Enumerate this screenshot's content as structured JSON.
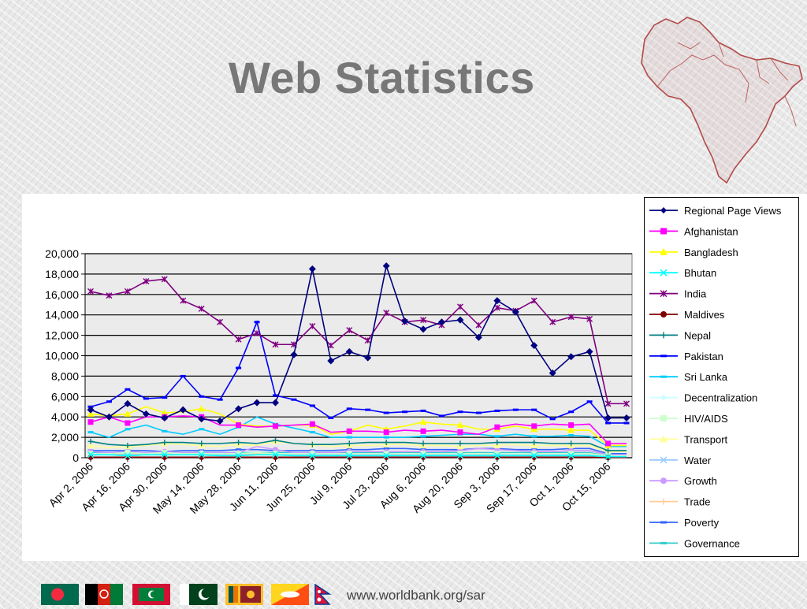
{
  "slide": {
    "title": "Web Statistics",
    "footer_url": "www.worldbank.org/sar",
    "flags": [
      "bangladesh-flag",
      "afghanistan-flag",
      "maldives-flag",
      "pakistan-flag",
      "sri-lanka-flag",
      "bhutan-flag",
      "nepal-flag"
    ]
  },
  "chart_data": {
    "type": "line",
    "title": "",
    "xlabel": "",
    "ylabel": "",
    "ylim": [
      0,
      20000
    ],
    "yticks": [
      0,
      2000,
      4000,
      6000,
      8000,
      10000,
      12000,
      14000,
      16000,
      18000,
      20000
    ],
    "ytick_labels": [
      "0",
      "2,000",
      "4,000",
      "6,000",
      "8,000",
      "10,000",
      "12,000",
      "14,000",
      "16,000",
      "18,000",
      "20,000"
    ],
    "xtick_labels": [
      "Apr  2, 2006",
      "Apr 16, 2006",
      "Apr 30, 2006",
      "May 14, 2006",
      "May 28, 2006",
      "Jun 11, 2006",
      "Jun 25, 2006",
      "Jul  9, 2006",
      "Jul 23, 2006",
      "Aug  6, 2006",
      "Aug 20, 2006",
      "Sep  3, 2006",
      "Sep 17, 2006",
      "Oct  1, 2006",
      "Oct 15, 2006"
    ],
    "grid": true,
    "plot_background": "#ebebeb",
    "legend_position": "right",
    "x": [
      "2006-04-02",
      "2006-04-09",
      "2006-04-16",
      "2006-04-23",
      "2006-04-30",
      "2006-05-07",
      "2006-05-14",
      "2006-05-21",
      "2006-05-28",
      "2006-06-04",
      "2006-06-11",
      "2006-06-18",
      "2006-06-25",
      "2006-07-02",
      "2006-07-09",
      "2006-07-16",
      "2006-07-23",
      "2006-07-30",
      "2006-08-06",
      "2006-08-13",
      "2006-08-20",
      "2006-08-27",
      "2006-09-03",
      "2006-09-10",
      "2006-09-17",
      "2006-09-24",
      "2006-10-01",
      "2006-10-08",
      "2006-10-15",
      "2006-10-22"
    ],
    "series": [
      {
        "name": "Regional Page Views",
        "color": "#000080",
        "marker": "diamond",
        "values": [
          4700,
          4000,
          5300,
          4300,
          3900,
          4700,
          3800,
          3600,
          4800,
          5400,
          5400,
          10100,
          18500,
          9500,
          10400,
          9800,
          18800,
          13400,
          12600,
          13300,
          13500,
          11800,
          15400,
          14300,
          11000,
          8300,
          9900,
          10400,
          3900,
          3900
        ]
      },
      {
        "name": "Afghanistan",
        "color": "#ff00ff",
        "marker": "square",
        "values": [
          3500,
          4000,
          3400,
          4000,
          4000,
          4100,
          4000,
          3200,
          3200,
          3000,
          3100,
          3200,
          3300,
          2500,
          2600,
          2600,
          2500,
          2700,
          2600,
          2700,
          2500,
          2300,
          3000,
          3300,
          3100,
          3300,
          3200,
          3300,
          1400,
          1400
        ]
      },
      {
        "name": "Bangladesh",
        "color": "#ffff00",
        "marker": "triangle",
        "values": [
          4300,
          4100,
          4300,
          5000,
          4400,
          4500,
          4800,
          4300,
          3300,
          3100,
          3100,
          3200,
          3200,
          2300,
          2600,
          3200,
          2800,
          3100,
          3500,
          3300,
          3200,
          2800,
          2800,
          3100,
          2800,
          2800,
          2700,
          2700,
          1200,
          1200
        ]
      },
      {
        "name": "Bhutan",
        "color": "#00ffff",
        "marker": "x",
        "values": [
          300,
          300,
          200,
          300,
          300,
          300,
          300,
          200,
          200,
          300,
          300,
          200,
          200,
          200,
          200,
          200,
          200,
          200,
          200,
          200,
          200,
          200,
          200,
          200,
          200,
          200,
          200,
          200,
          100,
          100
        ]
      },
      {
        "name": "India",
        "color": "#800080",
        "marker": "star",
        "values": [
          16300,
          15900,
          16300,
          17300,
          17500,
          15400,
          14600,
          13300,
          11600,
          12200,
          11100,
          11100,
          12900,
          11000,
          12500,
          11500,
          14200,
          13300,
          13500,
          13000,
          14800,
          13000,
          14700,
          14400,
          15400,
          13300,
          13800,
          13600,
          5300,
          5300
        ]
      },
      {
        "name": "Maldives",
        "color": "#800000",
        "marker": "circle",
        "values": [
          50,
          50,
          50,
          50,
          50,
          50,
          50,
          50,
          50,
          50,
          50,
          50,
          50,
          50,
          50,
          50,
          50,
          50,
          50,
          50,
          50,
          50,
          50,
          50,
          50,
          50,
          50,
          50,
          20,
          20
        ]
      },
      {
        "name": "Nepal",
        "color": "#008080",
        "marker": "plus",
        "values": [
          1600,
          1300,
          1200,
          1300,
          1500,
          1500,
          1400,
          1400,
          1500,
          1400,
          1700,
          1400,
          1300,
          1300,
          1400,
          1500,
          1500,
          1500,
          1400,
          1400,
          1400,
          1400,
          1500,
          1500,
          1500,
          1400,
          1400,
          1400,
          700,
          700
        ]
      },
      {
        "name": "Pakistan",
        "color": "#0000ff",
        "marker": "dash",
        "values": [
          5000,
          5500,
          6700,
          5800,
          5900,
          8000,
          6000,
          5700,
          8800,
          13300,
          6100,
          5700,
          5100,
          3900,
          4800,
          4700,
          4400,
          4500,
          4600,
          4100,
          4500,
          4400,
          4600,
          4700,
          4700,
          3800,
          4500,
          5500,
          3400,
          3400
        ]
      },
      {
        "name": "Sri Lanka",
        "color": "#00ccff",
        "marker": "dash",
        "values": [
          2500,
          2000,
          2800,
          3200,
          2600,
          2300,
          2800,
          2300,
          3000,
          4000,
          3300,
          2900,
          2500,
          2000,
          2000,
          2000,
          2000,
          2000,
          2100,
          2200,
          2300,
          2300,
          2100,
          2300,
          2100,
          2100,
          2200,
          2100,
          1100,
          1100
        ]
      },
      {
        "name": "Decentralization",
        "color": "#ccffff",
        "marker": "diamond",
        "values": [
          200,
          200,
          200,
          200,
          200,
          200,
          200,
          200,
          200,
          200,
          200,
          200,
          200,
          200,
          200,
          200,
          200,
          200,
          200,
          200,
          200,
          200,
          200,
          200,
          200,
          200,
          200,
          200,
          100,
          100
        ]
      },
      {
        "name": "HIV/AIDS",
        "color": "#ccffcc",
        "marker": "square",
        "values": [
          400,
          400,
          500,
          400,
          500,
          400,
          400,
          400,
          400,
          500,
          400,
          400,
          400,
          400,
          400,
          400,
          400,
          400,
          400,
          400,
          400,
          400,
          400,
          400,
          400,
          400,
          400,
          400,
          200,
          200
        ]
      },
      {
        "name": "Transport",
        "color": "#ffff99",
        "marker": "triangle",
        "values": [
          1200,
          1000,
          1100,
          1200,
          1400,
          1300,
          1200,
          1100,
          1300,
          1200,
          1600,
          1400,
          1300,
          1100,
          1200,
          1200,
          1300,
          1300,
          1200,
          1200,
          1100,
          1200,
          1200,
          1300,
          1200,
          1200,
          1200,
          1200,
          600,
          600
        ]
      },
      {
        "name": "Water",
        "color": "#99ccff",
        "marker": "x",
        "values": [
          300,
          300,
          300,
          300,
          300,
          300,
          300,
          300,
          300,
          300,
          300,
          300,
          300,
          300,
          300,
          300,
          300,
          300,
          300,
          300,
          300,
          300,
          300,
          300,
          300,
          300,
          300,
          300,
          100,
          100
        ]
      },
      {
        "name": "Growth",
        "color": "#cc99ff",
        "marker": "circle",
        "values": [
          600,
          500,
          600,
          500,
          600,
          500,
          500,
          500,
          500,
          1100,
          800,
          500,
          500,
          500,
          600,
          600,
          600,
          600,
          600,
          600,
          700,
          900,
          800,
          700,
          600,
          600,
          700,
          700,
          300,
          300
        ]
      },
      {
        "name": "Trade",
        "color": "#ffcc99",
        "marker": "plus",
        "values": [
          400,
          400,
          400,
          400,
          400,
          400,
          400,
          400,
          400,
          400,
          400,
          400,
          400,
          400,
          400,
          400,
          400,
          400,
          400,
          400,
          400,
          400,
          400,
          400,
          400,
          400,
          400,
          400,
          200,
          200
        ]
      },
      {
        "name": "Poverty",
        "color": "#3366ff",
        "marker": "dash",
        "values": [
          700,
          700,
          700,
          700,
          600,
          700,
          700,
          700,
          800,
          800,
          700,
          700,
          700,
          700,
          800,
          800,
          900,
          900,
          800,
          800,
          800,
          900,
          900,
          800,
          800,
          800,
          900,
          900,
          400,
          400
        ]
      },
      {
        "name": "Governance",
        "color": "#33cccc",
        "marker": "dash",
        "values": [
          500,
          500,
          500,
          500,
          500,
          500,
          500,
          500,
          500,
          500,
          500,
          500,
          500,
          500,
          500,
          500,
          500,
          500,
          500,
          500,
          500,
          500,
          500,
          500,
          500,
          500,
          500,
          500,
          200,
          200
        ]
      }
    ]
  }
}
